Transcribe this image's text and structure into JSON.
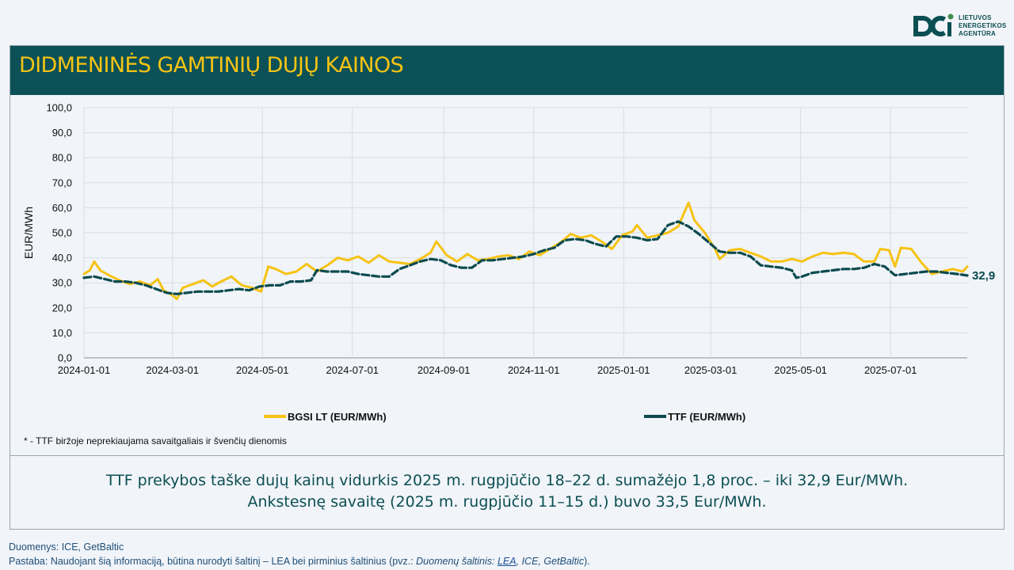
{
  "logo": {
    "lines": [
      "LIETUVOS",
      "ENERGETIKOS",
      "AGENTŪRA"
    ]
  },
  "header": {
    "title": "DIDMENINĖS GAMTINIŲ DUJŲ KAINOS"
  },
  "footnote": "* - TTF biržoje neprekiaujama savaitgaliais ir švenčių dienomis",
  "summary": {
    "line1": "TTF prekybos taške dujų kainų vidurkis 2025 m. rugpjūčio 18–22 d. sumažėjo 1,8 proc. – iki 32,9 Eur/MWh.",
    "line2": "Ankstesnę savaitę (2025 m. rugpjūčio 11–15 d.) buvo 33,5 Eur/MWh."
  },
  "sources": {
    "line1": "Duomenys: ICE, GetBaltic",
    "line2_prefix": "Pastaba: Naudojant šią informaciją, būtina nurodyti šaltinį – LEA bei pirminius šaltinius (pvz.: ",
    "line2_italic": "Duomenų šaltinis: ",
    "line2_link": "LEA",
    "line2_italic_rest": ", ICE, GetBaltic",
    "line2_suffix": ")."
  },
  "colors": {
    "bgsi": "#f6c313",
    "ttf": "#0b4b4f",
    "header_bg": "#0b5157",
    "title": "#f6c313"
  },
  "chart_data": {
    "type": "line",
    "ylabel": "EUR/MWh",
    "xlabel": "",
    "ylim": [
      0,
      100
    ],
    "yticks": [
      "0,0",
      "10,0",
      "20,0",
      "30,0",
      "40,0",
      "50,0",
      "60,0",
      "70,0",
      "80,0",
      "90,0",
      "100,0"
    ],
    "xlim": [
      "2024-01-01",
      "2025-08-22"
    ],
    "xticks": [
      "2024-01-01",
      "2024-03-01",
      "2024-05-01",
      "2024-07-01",
      "2024-09-01",
      "2024-11-01",
      "2025-01-01",
      "2025-03-01",
      "2025-05-01",
      "2025-07-01"
    ],
    "grid": true,
    "legend_position": "bottom",
    "end_label": "32,9",
    "series": [
      {
        "name": "BGSI LT (EUR/MWh)",
        "style": "solid",
        "points": [
          [
            "2024-01-01",
            33.5
          ],
          [
            "2024-01-05",
            35.0
          ],
          [
            "2024-01-08",
            38.5
          ],
          [
            "2024-01-12",
            35.0
          ],
          [
            "2024-01-18",
            33.0
          ],
          [
            "2024-01-25",
            31.0
          ],
          [
            "2024-02-01",
            29.5
          ],
          [
            "2024-02-08",
            30.5
          ],
          [
            "2024-02-15",
            29.0
          ],
          [
            "2024-02-20",
            31.5
          ],
          [
            "2024-02-24",
            27.0
          ],
          [
            "2024-03-01",
            25.0
          ],
          [
            "2024-03-04",
            23.5
          ],
          [
            "2024-03-08",
            28.0
          ],
          [
            "2024-03-15",
            29.5
          ],
          [
            "2024-03-22",
            31.0
          ],
          [
            "2024-03-28",
            28.5
          ],
          [
            "2024-04-03",
            30.5
          ],
          [
            "2024-04-10",
            32.5
          ],
          [
            "2024-04-17",
            29.0
          ],
          [
            "2024-04-24",
            28.0
          ],
          [
            "2024-04-30",
            26.5
          ],
          [
            "2024-05-05",
            36.5
          ],
          [
            "2024-05-10",
            35.5
          ],
          [
            "2024-05-17",
            33.5
          ],
          [
            "2024-05-24",
            34.5
          ],
          [
            "2024-05-31",
            37.5
          ],
          [
            "2024-06-07",
            34.5
          ],
          [
            "2024-06-14",
            37.0
          ],
          [
            "2024-06-21",
            40.0
          ],
          [
            "2024-06-28",
            39.0
          ],
          [
            "2024-07-05",
            40.5
          ],
          [
            "2024-07-12",
            38.0
          ],
          [
            "2024-07-19",
            41.0
          ],
          [
            "2024-07-26",
            38.5
          ],
          [
            "2024-08-02",
            38.0
          ],
          [
            "2024-08-09",
            37.5
          ],
          [
            "2024-08-16",
            39.5
          ],
          [
            "2024-08-23",
            42.0
          ],
          [
            "2024-08-27",
            46.5
          ],
          [
            "2024-09-03",
            41.0
          ],
          [
            "2024-09-10",
            38.5
          ],
          [
            "2024-09-17",
            41.5
          ],
          [
            "2024-09-24",
            39.0
          ],
          [
            "2024-10-01",
            39.5
          ],
          [
            "2024-10-08",
            40.5
          ],
          [
            "2024-10-15",
            41.0
          ],
          [
            "2024-10-22",
            39.5
          ],
          [
            "2024-10-29",
            42.5
          ],
          [
            "2024-11-05",
            41.0
          ],
          [
            "2024-11-12",
            43.5
          ],
          [
            "2024-11-19",
            46.0
          ],
          [
            "2024-11-26",
            49.5
          ],
          [
            "2024-12-03",
            48.0
          ],
          [
            "2024-12-10",
            49.0
          ],
          [
            "2024-12-17",
            46.5
          ],
          [
            "2024-12-24",
            43.5
          ],
          [
            "2024-12-31",
            49.0
          ],
          [
            "2025-01-07",
            50.5
          ],
          [
            "2025-01-10",
            53.0
          ],
          [
            "2025-01-17",
            48.0
          ],
          [
            "2025-01-24",
            49.0
          ],
          [
            "2025-01-31",
            50.0
          ],
          [
            "2025-02-07",
            52.5
          ],
          [
            "2025-02-11",
            58.0
          ],
          [
            "2025-02-14",
            62.0
          ],
          [
            "2025-02-18",
            55.0
          ],
          [
            "2025-02-25",
            50.0
          ],
          [
            "2025-03-04",
            43.5
          ],
          [
            "2025-03-07",
            39.5
          ],
          [
            "2025-03-14",
            43.0
          ],
          [
            "2025-03-21",
            43.5
          ],
          [
            "2025-03-28",
            42.0
          ],
          [
            "2025-04-04",
            40.5
          ],
          [
            "2025-04-11",
            38.5
          ],
          [
            "2025-04-18",
            38.5
          ],
          [
            "2025-04-25",
            39.5
          ],
          [
            "2025-05-02",
            38.5
          ],
          [
            "2025-05-09",
            40.5
          ],
          [
            "2025-05-16",
            42.0
          ],
          [
            "2025-05-23",
            41.5
          ],
          [
            "2025-05-30",
            42.0
          ],
          [
            "2025-06-06",
            41.5
          ],
          [
            "2025-06-13",
            38.5
          ],
          [
            "2025-06-20",
            38.5
          ],
          [
            "2025-06-24",
            43.5
          ],
          [
            "2025-06-30",
            43.0
          ],
          [
            "2025-07-04",
            36.5
          ],
          [
            "2025-07-08",
            44.0
          ],
          [
            "2025-07-15",
            43.5
          ],
          [
            "2025-07-22",
            38.0
          ],
          [
            "2025-07-29",
            33.5
          ],
          [
            "2025-08-05",
            34.5
          ],
          [
            "2025-08-12",
            35.5
          ],
          [
            "2025-08-19",
            34.5
          ],
          [
            "2025-08-22",
            36.5
          ]
        ]
      },
      {
        "name": "TTF (EUR/MWh)",
        "style": "dashed",
        "points": [
          [
            "2024-01-01",
            32.0
          ],
          [
            "2024-01-08",
            32.5
          ],
          [
            "2024-01-15",
            31.5
          ],
          [
            "2024-01-22",
            30.5
          ],
          [
            "2024-01-29",
            30.5
          ],
          [
            "2024-02-05",
            30.0
          ],
          [
            "2024-02-12",
            29.0
          ],
          [
            "2024-02-19",
            27.5
          ],
          [
            "2024-02-26",
            26.0
          ],
          [
            "2024-03-04",
            25.5
          ],
          [
            "2024-03-11",
            26.0
          ],
          [
            "2024-03-18",
            26.5
          ],
          [
            "2024-03-25",
            26.5
          ],
          [
            "2024-04-01",
            26.5
          ],
          [
            "2024-04-08",
            27.0
          ],
          [
            "2024-04-15",
            27.5
          ],
          [
            "2024-04-22",
            27.0
          ],
          [
            "2024-04-29",
            28.5
          ],
          [
            "2024-05-06",
            29.0
          ],
          [
            "2024-05-13",
            29.0
          ],
          [
            "2024-05-20",
            30.5
          ],
          [
            "2024-05-27",
            30.5
          ],
          [
            "2024-06-03",
            31.0
          ],
          [
            "2024-06-07",
            35.0
          ],
          [
            "2024-06-14",
            34.5
          ],
          [
            "2024-06-21",
            34.5
          ],
          [
            "2024-06-28",
            34.5
          ],
          [
            "2024-07-05",
            33.5
          ],
          [
            "2024-07-12",
            33.0
          ],
          [
            "2024-07-19",
            32.5
          ],
          [
            "2024-07-26",
            32.5
          ],
          [
            "2024-08-02",
            35.5
          ],
          [
            "2024-08-09",
            37.0
          ],
          [
            "2024-08-16",
            38.5
          ],
          [
            "2024-08-23",
            39.5
          ],
          [
            "2024-08-30",
            39.0
          ],
          [
            "2024-09-06",
            37.0
          ],
          [
            "2024-09-13",
            36.0
          ],
          [
            "2024-09-20",
            36.0
          ],
          [
            "2024-09-27",
            39.0
          ],
          [
            "2024-10-04",
            39.0
          ],
          [
            "2024-10-11",
            39.5
          ],
          [
            "2024-10-18",
            40.0
          ],
          [
            "2024-10-25",
            40.5
          ],
          [
            "2024-11-01",
            41.5
          ],
          [
            "2024-11-08",
            43.0
          ],
          [
            "2024-11-15",
            44.0
          ],
          [
            "2024-11-22",
            47.0
          ],
          [
            "2024-11-29",
            47.5
          ],
          [
            "2024-12-06",
            47.0
          ],
          [
            "2024-12-13",
            45.5
          ],
          [
            "2024-12-20",
            44.5
          ],
          [
            "2024-12-27",
            48.5
          ],
          [
            "2025-01-03",
            48.5
          ],
          [
            "2025-01-10",
            48.0
          ],
          [
            "2025-01-17",
            47.0
          ],
          [
            "2025-01-24",
            47.5
          ],
          [
            "2025-01-31",
            53.0
          ],
          [
            "2025-02-07",
            54.5
          ],
          [
            "2025-02-14",
            52.5
          ],
          [
            "2025-02-21",
            49.5
          ],
          [
            "2025-02-28",
            46.0
          ],
          [
            "2025-03-07",
            42.5
          ],
          [
            "2025-03-14",
            42.0
          ],
          [
            "2025-03-21",
            42.0
          ],
          [
            "2025-03-28",
            40.5
          ],
          [
            "2025-04-04",
            37.0
          ],
          [
            "2025-04-11",
            36.5
          ],
          [
            "2025-04-18",
            36.0
          ],
          [
            "2025-04-25",
            35.0
          ],
          [
            "2025-04-28",
            32.0
          ],
          [
            "2025-05-02",
            32.5
          ],
          [
            "2025-05-09",
            34.0
          ],
          [
            "2025-05-16",
            34.5
          ],
          [
            "2025-05-23",
            35.0
          ],
          [
            "2025-05-30",
            35.5
          ],
          [
            "2025-06-06",
            35.5
          ],
          [
            "2025-06-13",
            36.0
          ],
          [
            "2025-06-20",
            37.5
          ],
          [
            "2025-06-27",
            36.5
          ],
          [
            "2025-07-04",
            33.0
          ],
          [
            "2025-07-11",
            33.5
          ],
          [
            "2025-07-18",
            34.0
          ],
          [
            "2025-07-25",
            34.5
          ],
          [
            "2025-08-01",
            34.5
          ],
          [
            "2025-08-08",
            34.0
          ],
          [
            "2025-08-15",
            33.5
          ],
          [
            "2025-08-22",
            32.9
          ]
        ]
      }
    ]
  }
}
